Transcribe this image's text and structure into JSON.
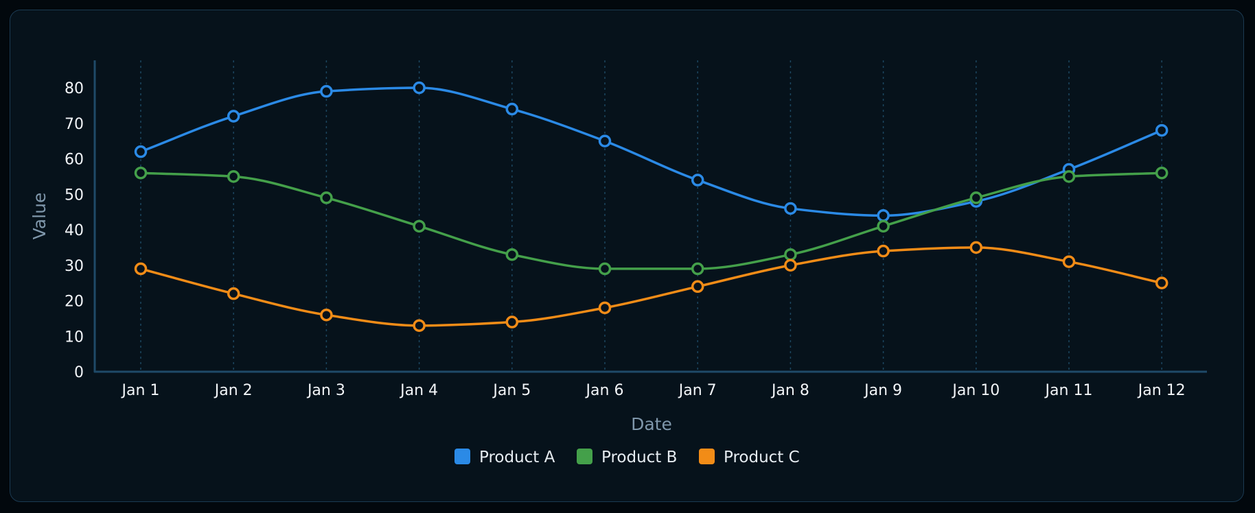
{
  "chart_data": {
    "type": "line",
    "xlabel": "Date",
    "ylabel": "Value",
    "ylim": [
      0,
      88
    ],
    "yticks": [
      0,
      10,
      20,
      30,
      40,
      50,
      60,
      70,
      80
    ],
    "categories": [
      "Jan 1",
      "Jan 2",
      "Jan 3",
      "Jan 4",
      "Jan 5",
      "Jan 6",
      "Jan 7",
      "Jan 8",
      "Jan 9",
      "Jan 10",
      "Jan 11",
      "Jan 12"
    ],
    "grid": "vertical dashed",
    "legend": "bottom-center",
    "curve": "smooth",
    "series": [
      {
        "name": "Product A",
        "color": "#2b8ae6",
        "values": [
          62,
          72,
          79,
          80,
          74,
          65,
          54,
          46,
          44,
          48,
          57,
          68
        ]
      },
      {
        "name": "Product B",
        "color": "#44a04a",
        "values": [
          56,
          55,
          49,
          41,
          33,
          29,
          29,
          33,
          41,
          49,
          55,
          56
        ]
      },
      {
        "name": "Product C",
        "color": "#f28c17",
        "values": [
          29,
          22,
          16,
          13,
          14,
          18,
          24,
          30,
          34,
          35,
          31,
          25
        ]
      }
    ]
  }
}
